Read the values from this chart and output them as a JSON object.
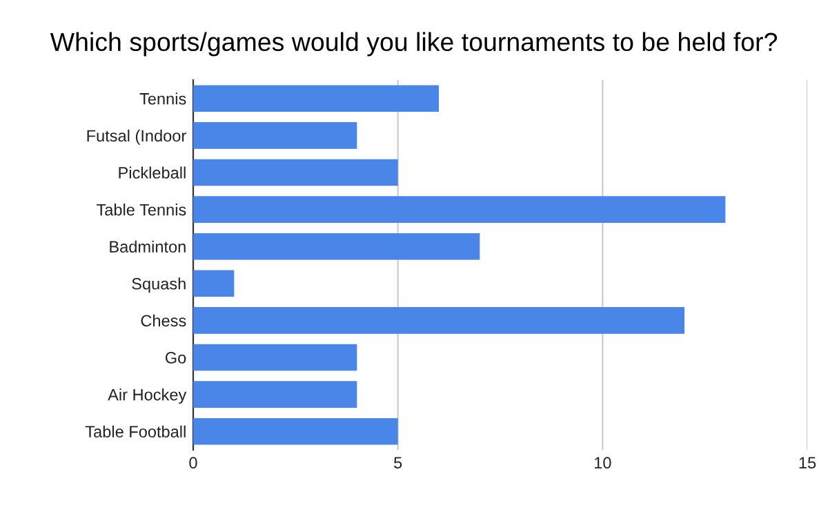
{
  "chart_data": {
    "type": "bar",
    "orientation": "horizontal",
    "title": "Which sports/games would you like tournaments to be held for?",
    "categories": [
      "Tennis",
      "Futsal (Indoor",
      "Pickleball",
      "Table Tennis",
      "Badminton",
      "Squash",
      "Chess",
      "Go",
      "Air Hockey",
      "Table Football"
    ],
    "values": [
      6,
      4,
      5,
      13,
      7,
      1,
      12,
      4,
      4,
      5
    ],
    "color": "#4a86e8",
    "xlim": [
      0,
      15
    ],
    "xticks": [
      0,
      5,
      10,
      15
    ],
    "grid": "x",
    "legend": false
  }
}
